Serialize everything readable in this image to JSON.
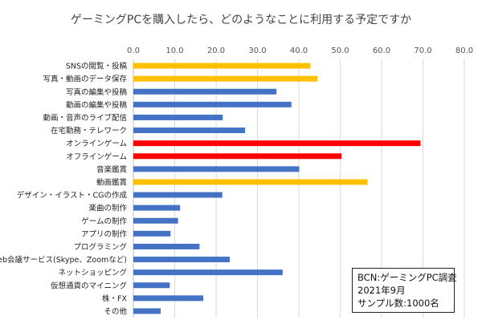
{
  "chart_data": {
    "type": "bar",
    "orientation": "horizontal",
    "title": "ゲーミングPCを購入したら、どのようなことに利用する予定ですか",
    "xlim": [
      0,
      80
    ],
    "xticks": [
      "0.0",
      "10.0",
      "20.0",
      "30.0",
      "40.0",
      "50.0",
      "60.0",
      "70.0",
      "80.0"
    ],
    "xaxis_position": "top",
    "grid": true,
    "categories": [
      "SNSの閲覧・投稿",
      "写真・動画のデータ保存",
      "写真の編集や投稿",
      "動画の編集や投稿",
      "動画・音声のライブ配信",
      "在宅勤務・テレワーク",
      "オンラインゲーム",
      "オフラインゲーム",
      "音楽鑑賞",
      "動画鑑賞",
      "デザイン・イラスト・CGの作成",
      "楽曲の制作",
      "ゲームの制作",
      "アプリの制作",
      "プログラミング",
      "Web会議サービス(Skype、Zoomなど)",
      "ネットショッピング",
      "仮想通貨のマイニング",
      "株・FX",
      "その他"
    ],
    "values": [
      42.8,
      44.5,
      34.6,
      38.2,
      21.6,
      27.0,
      69.4,
      50.3,
      40.1,
      56.6,
      21.5,
      11.3,
      10.8,
      9.0,
      16.0,
      23.3,
      36.1,
      8.8,
      16.9,
      6.6
    ],
    "bar_colors": [
      "#FFC000",
      "#FFC000",
      "#4472C4",
      "#4472C4",
      "#4472C4",
      "#4472C4",
      "#FF0000",
      "#FF0000",
      "#4472C4",
      "#FFC000",
      "#4472C4",
      "#4472C4",
      "#4472C4",
      "#4472C4",
      "#4472C4",
      "#4472C4",
      "#4472C4",
      "#4472C4",
      "#4472C4",
      "#4472C4"
    ]
  },
  "source_note": {
    "line1": "BCN:ゲーミングPC調査",
    "line2": "2021年9月",
    "line3": "サンプル数:1000名"
  },
  "colors": {
    "grid": "#D9D9D9",
    "axis": "#BFBFBF"
  }
}
